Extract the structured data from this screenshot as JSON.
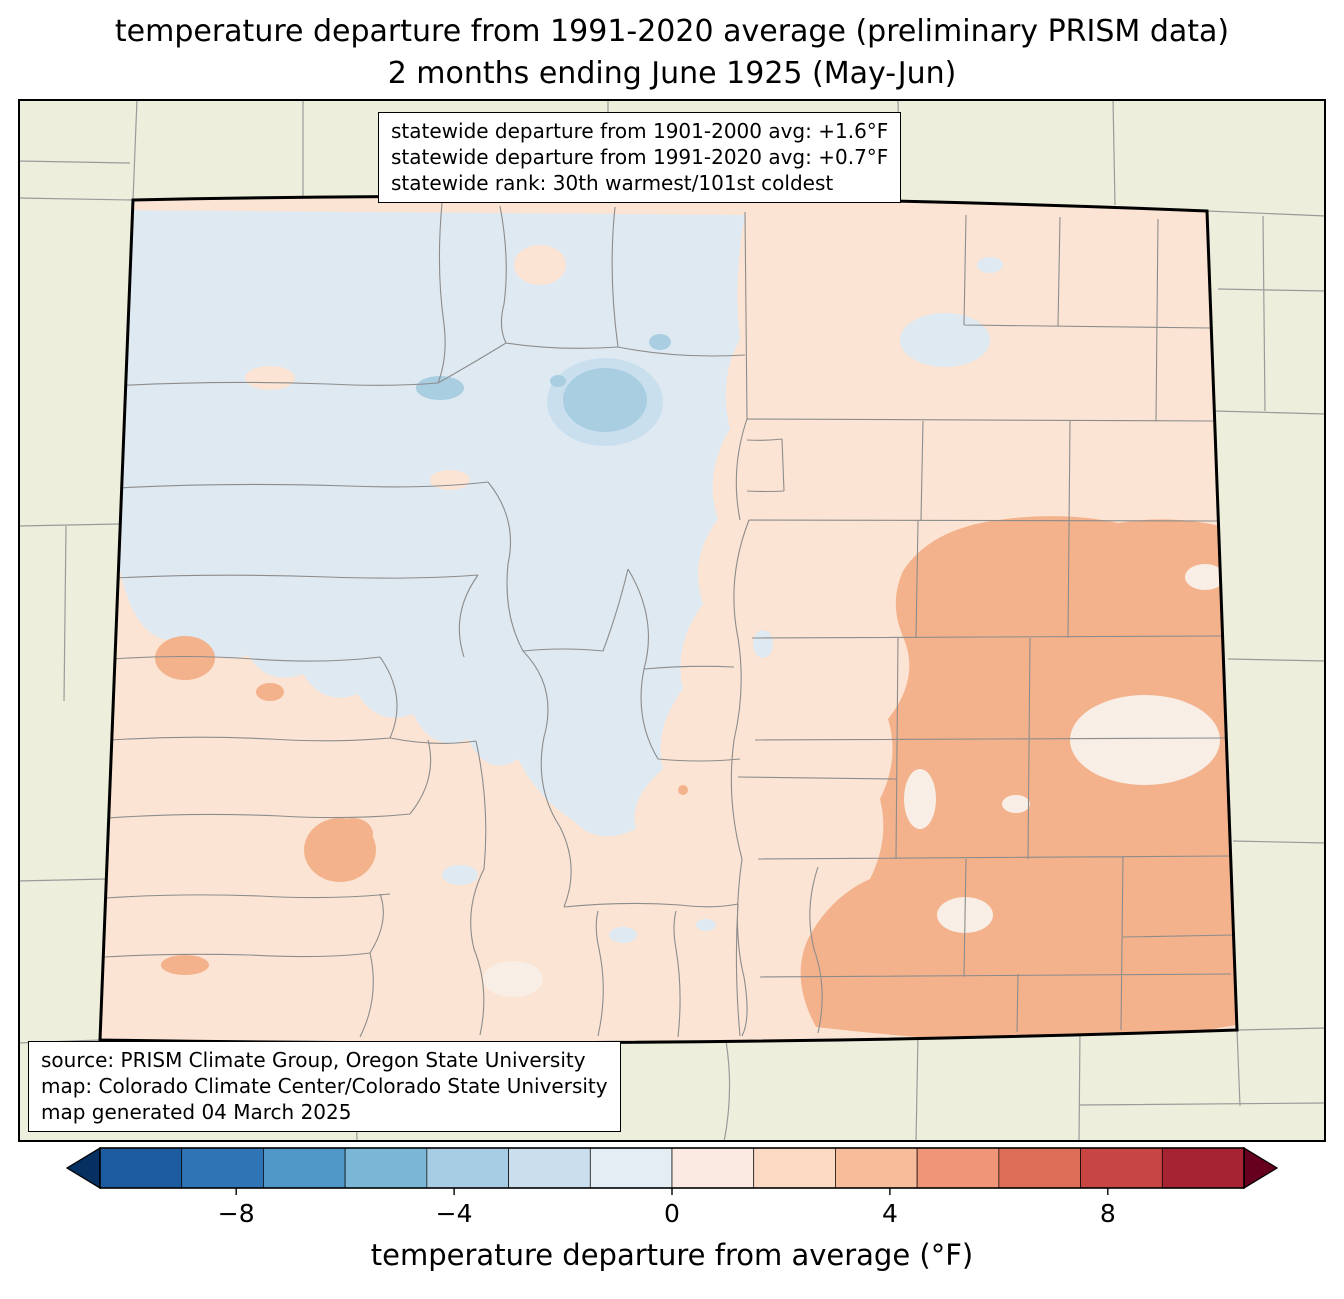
{
  "title": {
    "line1": "temperature departure from 1991-2020 average (preliminary PRISM data)",
    "line2": "2 months ending June 1925 (May-Jun)"
  },
  "stats_box": {
    "lines": [
      "statewide departure from 1901-2000 avg: +1.6°F",
      "statewide departure from 1991-2020 avg: +0.7°F",
      "statewide rank: 30th warmest/101st coldest"
    ]
  },
  "source_box": {
    "lines": [
      "source: PRISM Climate Group, Oregon State University",
      "map: Colorado Climate Center/Colorado State University",
      "map generated 04 March 2025"
    ]
  },
  "colorbar": {
    "label": "temperature departure from average (°F)",
    "range": [
      -10.5,
      10.5
    ],
    "ticks": [
      {
        "value": -8,
        "label": "−8"
      },
      {
        "value": -4,
        "label": "−4"
      },
      {
        "value": 0,
        "label": "0"
      },
      {
        "value": 4,
        "label": "4"
      },
      {
        "value": 8,
        "label": "8"
      }
    ],
    "segment_colors": [
      "#1c5ba0",
      "#2f74b5",
      "#4f97c6",
      "#7ab6d6",
      "#a6cde3",
      "#cbdeed",
      "#e4edf3",
      "#faeae1",
      "#fbd9c3",
      "#f7bd9b",
      "#ee9677",
      "#dc6e58",
      "#c74643",
      "#a62333"
    ],
    "arrow_left_color": "#053061",
    "arrow_right_color": "#67001f"
  },
  "map": {
    "state": "Colorado",
    "fills": {
      "background": "#edefdc",
      "state_base": "#fbe4d3",
      "cool": "#dee9f2",
      "cool_mid": "#c9dfee",
      "cool_strong": "#a9cde1",
      "warm_strong": "#f4b28c",
      "near_zero": "#f8eee6"
    },
    "border_color": "#000000",
    "county_line_color": "#8c8c8c",
    "neighbor_line_color": "#9a9a9a"
  }
}
